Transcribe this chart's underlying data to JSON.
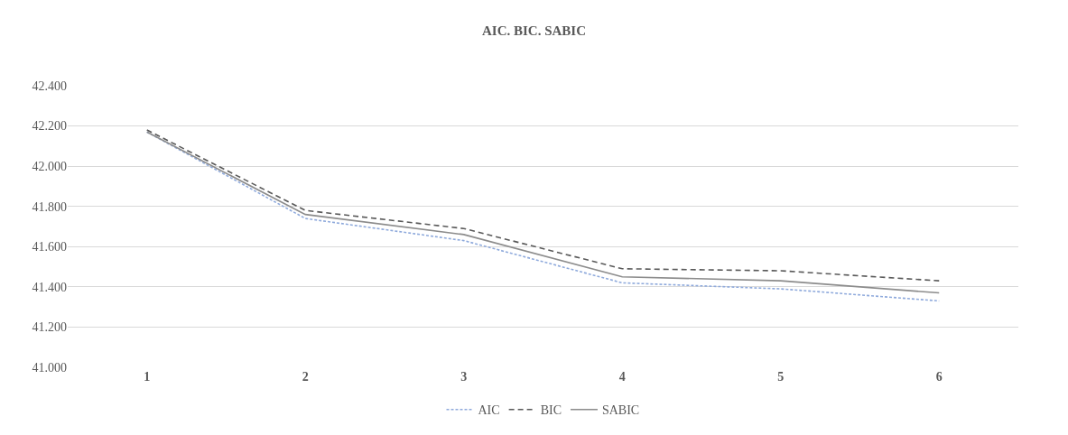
{
  "chart_data": {
    "type": "line",
    "title": "AIC. BIC. SABIC",
    "categories": [
      "1",
      "2",
      "3",
      "4",
      "5",
      "6"
    ],
    "series": [
      {
        "name": "AIC",
        "color": "#8faadc",
        "line_style": "dotted",
        "values": [
          42170,
          41740,
          41630,
          41420,
          41390,
          41330
        ]
      },
      {
        "name": "BIC",
        "color": "#595959",
        "line_style": "dashed",
        "values": [
          42180,
          41780,
          41690,
          41490,
          41480,
          41430
        ]
      },
      {
        "name": "SABIC",
        "color": "#8c8c8c",
        "line_style": "solid",
        "values": [
          42170,
          41760,
          41660,
          41450,
          41430,
          41370
        ]
      }
    ],
    "ylim": [
      41000,
      42400
    ],
    "yticks": [
      {
        "value": 41000,
        "label": "41.000"
      },
      {
        "value": 41200,
        "label": "41.200"
      },
      {
        "value": 41400,
        "label": "41.400"
      },
      {
        "value": 41600,
        "label": "41.600"
      },
      {
        "value": 41800,
        "label": "41.800"
      },
      {
        "value": 42000,
        "label": "42.000"
      },
      {
        "value": 42200,
        "label": "42.200"
      },
      {
        "value": 42400,
        "label": "42.400"
      }
    ],
    "grid": "y",
    "legend": "bottom",
    "marker": "none"
  }
}
